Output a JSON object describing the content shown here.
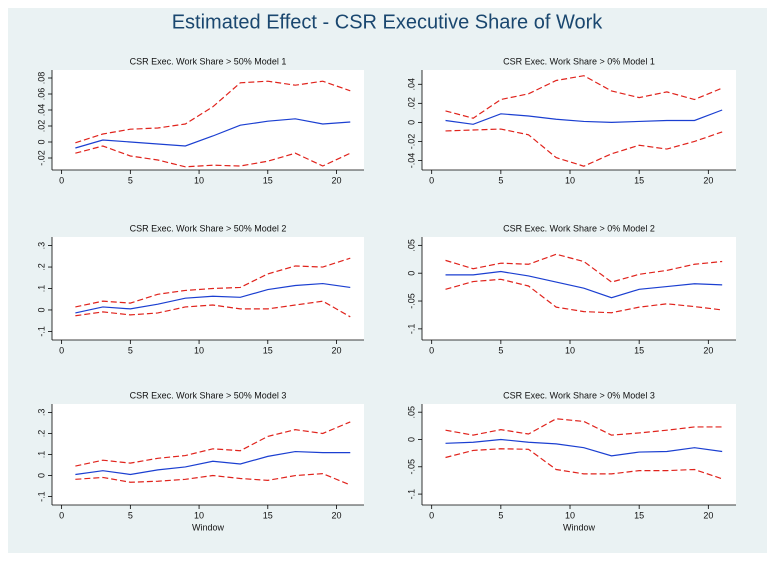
{
  "title": "Estimated Effect - CSR Executive Share of Work",
  "chart_data": [
    {
      "type": "line",
      "title": "CSR Exec. Work Share > 50% Model 1",
      "x": [
        1,
        3,
        5,
        7,
        9,
        11,
        13,
        15,
        17,
        19,
        21
      ],
      "xlim": [
        -0.7,
        22
      ],
      "xticks": [
        0,
        5,
        10,
        15,
        20
      ],
      "ylim": [
        -0.035,
        0.09
      ],
      "yticks": [
        {
          "value": -0.02,
          "label": "-.02"
        },
        0,
        {
          "value": 0.02,
          "label": ".02"
        },
        {
          "value": 0.04,
          "label": ".04"
        },
        {
          "value": 0.06,
          "label": ".06"
        },
        {
          "value": 0.08,
          "label": ".08"
        }
      ],
      "series": [
        {
          "color": "#1b3fd1",
          "line_style": "solid",
          "values": [
            -0.0075,
            0.0025,
            0,
            -0.0025,
            -0.005,
            0.0075,
            0.021,
            0.026,
            0.029,
            0.0225,
            0.025
          ]
        },
        {
          "color": "#e0231c",
          "line_style": "dashed",
          "values": [
            -0.001,
            0.01,
            0.016,
            0.0175,
            0.0225,
            0.044,
            0.074,
            0.076,
            0.071,
            0.076,
            0.064
          ]
        },
        {
          "color": "#e0231c",
          "line_style": "dashed",
          "values": [
            -0.014,
            -0.005,
            -0.0175,
            -0.0225,
            -0.031,
            -0.029,
            -0.03,
            -0.024,
            -0.014,
            -0.03,
            -0.014
          ]
        }
      ]
    },
    {
      "type": "line",
      "title": "CSR Exec. Work Share > 0% Model 1",
      "x": [
        1,
        3,
        5,
        7,
        9,
        11,
        13,
        15,
        17,
        19,
        21
      ],
      "xlim": [
        -0.7,
        22
      ],
      "xticks": [
        0,
        5,
        10,
        15,
        20
      ],
      "ylim": [
        -0.05,
        0.055
      ],
      "yticks": [
        {
          "value": -0.04,
          "label": "-.04"
        },
        {
          "value": -0.02,
          "label": "-.02"
        },
        0,
        {
          "value": 0.02,
          "label": ".02"
        },
        {
          "value": 0.04,
          "label": ".04"
        }
      ],
      "series": [
        {
          "color": "#1b3fd1",
          "line_style": "solid",
          "values": [
            0.002,
            -0.002,
            0.009,
            0.0067,
            0.0033,
            0.001,
            0,
            0.001,
            0.002,
            0.002,
            0.013
          ]
        },
        {
          "color": "#e0231c",
          "line_style": "dashed",
          "values": [
            0.012,
            0.0044,
            0.024,
            0.03,
            0.044,
            0.049,
            0.033,
            0.026,
            0.032,
            0.024,
            0.036
          ]
        },
        {
          "color": "#e0231c",
          "line_style": "dashed",
          "values": [
            -0.009,
            -0.008,
            -0.007,
            -0.013,
            -0.037,
            -0.046,
            -0.033,
            -0.024,
            -0.028,
            -0.02,
            -0.01
          ]
        }
      ]
    },
    {
      "type": "line",
      "title": "CSR Exec. Work Share > 50% Model 2",
      "x": [
        1,
        3,
        5,
        7,
        9,
        11,
        13,
        15,
        17,
        19,
        21
      ],
      "xlim": [
        -0.7,
        22
      ],
      "xticks": [
        0,
        5,
        10,
        15,
        20
      ],
      "ylim": [
        -0.14,
        0.34
      ],
      "yticks": [
        {
          "value": -0.1,
          "label": "-.1"
        },
        0,
        {
          "value": 0.1,
          "label": ".1"
        },
        {
          "value": 0.2,
          "label": ".2"
        },
        {
          "value": 0.3,
          "label": ".3"
        }
      ],
      "series": [
        {
          "color": "#1b3fd1",
          "line_style": "solid",
          "values": [
            -0.014,
            0.014,
            0.005,
            0.027,
            0.055,
            0.064,
            0.059,
            0.095,
            0.114,
            0.123,
            0.105
          ]
        },
        {
          "color": "#e0231c",
          "line_style": "dashed",
          "values": [
            0.014,
            0.041,
            0.032,
            0.073,
            0.091,
            0.1,
            0.105,
            0.168,
            0.205,
            0.2,
            0.241
          ]
        },
        {
          "color": "#e0231c",
          "line_style": "dashed",
          "values": [
            -0.027,
            -0.009,
            -0.023,
            -0.014,
            0.014,
            0.023,
            0.005,
            0.005,
            0.023,
            0.041,
            -0.032
          ]
        }
      ]
    },
    {
      "type": "line",
      "title": "CSR Exec. Work Share > 0% Model 2",
      "x": [
        1,
        3,
        5,
        7,
        9,
        11,
        13,
        15,
        17,
        19,
        21
      ],
      "xlim": [
        -0.7,
        22
      ],
      "xticks": [
        0,
        5,
        10,
        15,
        20
      ],
      "ylim": [
        -0.12,
        0.065
      ],
      "yticks": [
        {
          "value": -0.1,
          "label": "-.1"
        },
        {
          "value": -0.05,
          "label": "-.05"
        },
        0,
        {
          "value": 0.05,
          "label": ".05"
        }
      ],
      "series": [
        {
          "color": "#1b3fd1",
          "line_style": "solid",
          "values": [
            -0.003,
            -0.003,
            0.003,
            -0.005,
            -0.016,
            -0.027,
            -0.044,
            -0.029,
            -0.024,
            -0.019,
            -0.021
          ]
        },
        {
          "color": "#e0231c",
          "line_style": "dashed",
          "values": [
            0.023,
            0.008,
            0.018,
            0.016,
            0.034,
            0.021,
            -0.016,
            -0.002,
            0.005,
            0.016,
            0.021
          ]
        },
        {
          "color": "#e0231c",
          "line_style": "dashed",
          "values": [
            -0.029,
            -0.015,
            -0.011,
            -0.023,
            -0.061,
            -0.069,
            -0.071,
            -0.061,
            -0.055,
            -0.06,
            -0.066
          ]
        }
      ]
    },
    {
      "type": "line",
      "title": "CSR Exec. Work Share > 50% Model 3",
      "xlabel": "Window",
      "x": [
        1,
        3,
        5,
        7,
        9,
        11,
        13,
        15,
        17,
        19,
        21
      ],
      "xlim": [
        -0.7,
        22
      ],
      "xticks": [
        0,
        5,
        10,
        15,
        20
      ],
      "ylim": [
        -0.14,
        0.34
      ],
      "yticks": [
        {
          "value": -0.1,
          "label": "-.1"
        },
        0,
        {
          "value": 0.1,
          "label": ".1"
        },
        {
          "value": 0.2,
          "label": ".2"
        },
        {
          "value": 0.3,
          "label": ".3"
        }
      ],
      "series": [
        {
          "color": "#1b3fd1",
          "line_style": "solid",
          "values": [
            0.005,
            0.023,
            0.005,
            0.027,
            0.041,
            0.068,
            0.055,
            0.091,
            0.114,
            0.109,
            0.109
          ]
        },
        {
          "color": "#e0231c",
          "line_style": "dashed",
          "values": [
            0.045,
            0.073,
            0.059,
            0.082,
            0.095,
            0.127,
            0.118,
            0.186,
            0.218,
            0.2,
            0.255
          ]
        },
        {
          "color": "#e0231c",
          "line_style": "dashed",
          "values": [
            -0.018,
            -0.009,
            -0.032,
            -0.027,
            -0.018,
            0,
            -0.014,
            -0.023,
            0,
            0.009,
            -0.045
          ]
        }
      ]
    },
    {
      "type": "line",
      "title": "CSR Exec. Work Share > 0% Model 3",
      "xlabel": "Window",
      "x": [
        1,
        3,
        5,
        7,
        9,
        11,
        13,
        15,
        17,
        19,
        21
      ],
      "xlim": [
        -0.7,
        22
      ],
      "xticks": [
        0,
        5,
        10,
        15,
        20
      ],
      "ylim": [
        -0.12,
        0.065
      ],
      "yticks": [
        {
          "value": -0.1,
          "label": "-.1"
        },
        {
          "value": -0.05,
          "label": "-.05"
        },
        0,
        {
          "value": 0.05,
          "label": ".05"
        }
      ],
      "series": [
        {
          "color": "#1b3fd1",
          "line_style": "solid",
          "values": [
            -0.007,
            -0.005,
            0,
            -0.005,
            -0.008,
            -0.015,
            -0.03,
            -0.023,
            -0.022,
            -0.015,
            -0.022
          ]
        },
        {
          "color": "#e0231c",
          "line_style": "dashed",
          "values": [
            0.017,
            0.008,
            0.018,
            0.01,
            0.038,
            0.033,
            0.008,
            0.012,
            0.017,
            0.023,
            0.023
          ]
        },
        {
          "color": "#e0231c",
          "line_style": "dashed",
          "values": [
            -0.033,
            -0.02,
            -0.017,
            -0.018,
            -0.055,
            -0.063,
            -0.063,
            -0.057,
            -0.057,
            -0.055,
            -0.072
          ]
        }
      ]
    }
  ]
}
